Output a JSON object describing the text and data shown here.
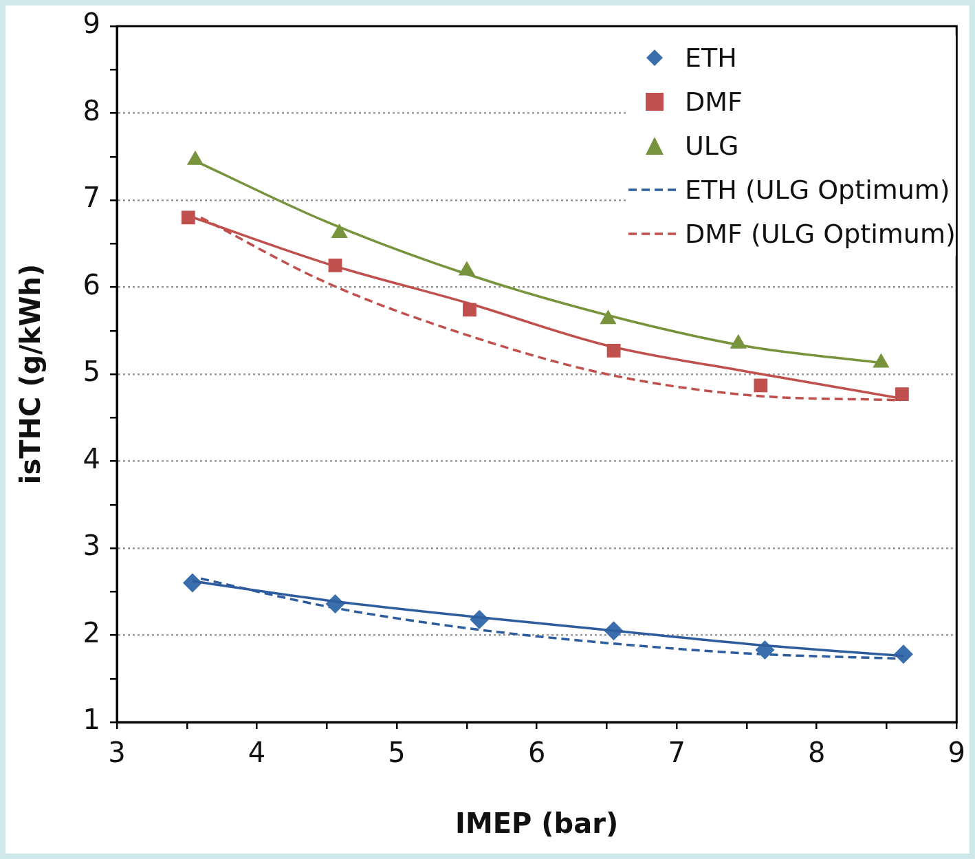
{
  "chart_data": {
    "type": "scatter",
    "xlabel": "IMEP (bar)",
    "ylabel": "isTHC (g/kWh)",
    "xlim": [
      3,
      9
    ],
    "xticks": [
      3,
      {
        "value": 3.5,
        "label": null
      },
      4,
      {
        "value": 4.5,
        "label": null
      },
      5,
      {
        "value": 5.5,
        "label": null
      },
      6,
      {
        "value": 6.5,
        "label": null
      },
      7,
      {
        "value": 7.5,
        "label": null
      },
      8,
      {
        "value": 8.5,
        "label": null
      },
      9
    ],
    "ylim": [
      1,
      9
    ],
    "yticks": [
      1,
      {
        "value": 1.5,
        "label": null
      },
      2,
      {
        "value": 2.5,
        "label": null
      },
      3,
      {
        "value": 3.5,
        "label": null
      },
      4,
      {
        "value": 4.5,
        "label": null
      },
      5,
      {
        "value": 5.5,
        "label": null
      },
      6,
      {
        "value": 6.5,
        "label": null
      },
      7,
      {
        "value": 7.5,
        "label": null
      },
      8,
      {
        "value": 8.5,
        "label": null
      },
      9
    ],
    "grid": "y",
    "legend": "top right",
    "series": [
      {
        "type": "line",
        "color": "#2e5d9e",
        "line_style": "solid",
        "marker": "none",
        "x": [
          3.54,
          4.5,
          5.5,
          6.5,
          7.5,
          8.62
        ],
        "values": [
          2.62,
          2.4,
          2.22,
          2.06,
          1.9,
          1.76
        ]
      },
      {
        "type": "line",
        "color": "#c0504d",
        "line_style": "solid",
        "marker": "none",
        "x": [
          3.51,
          4.5,
          5.5,
          6.5,
          7.5,
          8.61
        ],
        "values": [
          6.82,
          6.27,
          5.82,
          5.33,
          5.03,
          4.72
        ]
      },
      {
        "type": "line",
        "color": "#77933c",
        "line_style": "solid",
        "marker": "none",
        "x": [
          3.56,
          4.5,
          5.5,
          6.5,
          7.5,
          8.46
        ],
        "values": [
          7.45,
          6.75,
          6.15,
          5.68,
          5.32,
          5.13
        ]
      },
      {
        "type": "scatter",
        "name": "ETH",
        "color": "#3a6ead",
        "marker": "diamond",
        "x": [
          3.54,
          4.56,
          5.59,
          6.55,
          7.63,
          8.62
        ],
        "values": [
          2.6,
          2.36,
          2.18,
          2.05,
          1.83,
          1.78
        ]
      },
      {
        "type": "scatter",
        "name": "DMF",
        "color": "#c0504d",
        "marker": "square",
        "x": [
          3.51,
          4.56,
          5.52,
          6.55,
          7.6,
          8.61
        ],
        "values": [
          6.8,
          6.25,
          5.74,
          5.27,
          4.87,
          4.77
        ]
      },
      {
        "type": "scatter",
        "name": "ULG",
        "color": "#77933c",
        "marker": "triangle",
        "x": [
          3.56,
          4.59,
          5.5,
          6.51,
          7.44,
          8.46
        ],
        "values": [
          7.46,
          6.62,
          6.19,
          5.63,
          5.35,
          5.13
        ]
      },
      {
        "type": "line",
        "name": "ETH (ULG Optimum)",
        "color": "#2e5d9e",
        "line_style": "dashed",
        "marker": "none",
        "x": [
          3.6,
          4.5,
          5.5,
          6.5,
          7.5,
          8.6
        ],
        "values": [
          2.65,
          2.33,
          2.08,
          1.91,
          1.79,
          1.73
        ]
      },
      {
        "type": "line",
        "name": "DMF (ULG Optimum)",
        "color": "#c0504d",
        "line_style": "dashed",
        "marker": "none",
        "x": [
          3.6,
          4.5,
          5.5,
          6.5,
          7.5,
          8.6
        ],
        "values": [
          6.8,
          6.05,
          5.45,
          5,
          4.76,
          4.7
        ]
      }
    ]
  }
}
